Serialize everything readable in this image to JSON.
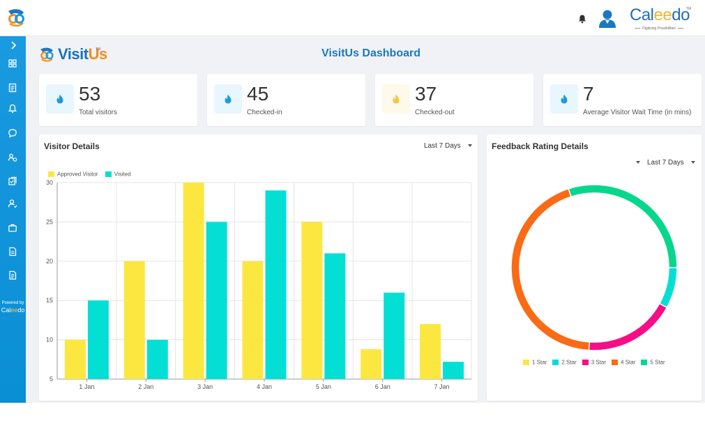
{
  "header": {
    "brand_prefix": "Cal",
    "brand_ee": "ee",
    "brand_suffix": "do",
    "brand_tm": "TM",
    "brand_tagline": "Digitizing Possibilities"
  },
  "sidebar": {
    "items": [
      "dashboard-icon",
      "register-icon",
      "notifications-icon",
      "chat-icon",
      "visitors-icon",
      "approvals-icon",
      "users-icon",
      "work-icon",
      "report-icon",
      "document-icon"
    ],
    "powered_label": "Powered by",
    "powered_prefix": "Cal",
    "powered_ee": "ee",
    "powered_suffix": "do"
  },
  "app_logo": {
    "visit": "Visit",
    "us": "Us",
    "tm": "TM"
  },
  "page_title": "VisitUs Dashboard",
  "stats": [
    {
      "value": "53",
      "label": "Total visitors",
      "icon": "fire-icon",
      "icon_color": "#1a9ae0",
      "bg": "#e8f6fd"
    },
    {
      "value": "45",
      "label": "Checked-in",
      "icon": "fire-icon",
      "icon_color": "#1a9ae0",
      "bg": "#e8f6fd"
    },
    {
      "value": "37",
      "label": "Checked-out",
      "icon": "fire-icon",
      "icon_color": "#f5c542",
      "bg": "#fef9e8"
    },
    {
      "value": "7",
      "label": "Average Visitor Wait Time (in mins)",
      "icon": "fire-icon",
      "icon_color": "#1a9ae0",
      "bg": "#e8f6fd"
    }
  ],
  "visitor_panel": {
    "title": "Visitor Details",
    "range": "Last 7 Days"
  },
  "feedback_panel": {
    "title": "Feedback Rating Details",
    "range": "Last 7 Days"
  },
  "chart_data": [
    {
      "type": "bar",
      "categories": [
        "1 Jan",
        "2 Jan",
        "3 Jan",
        "4 Jan",
        "5 Jan",
        "6 Jan",
        "7 Jan"
      ],
      "series": [
        {
          "name": "Approved Visitor",
          "values": [
            10,
            20,
            30,
            20,
            25,
            8.8,
            12
          ],
          "color": "#fce740"
        },
        {
          "name": "Visited",
          "values": [
            15,
            10,
            25,
            29,
            21,
            16,
            7.2
          ],
          "color": "#04dfd6"
        }
      ],
      "yticks": [
        5,
        10,
        15,
        20,
        25,
        30
      ],
      "ylim": [
        5,
        30
      ],
      "grid": true,
      "legend": "top-left"
    },
    {
      "type": "pie",
      "donut": true,
      "labels": [
        "1 Star",
        "2 Star",
        "3 Star",
        "4 Star",
        "5 Star"
      ],
      "values": [
        0,
        8,
        18,
        44,
        30
      ],
      "colors": [
        "#fce740",
        "#04dfd6",
        "#f70d85",
        "#fb6a14",
        "#06d78d"
      ],
      "legend": "bottom"
    }
  ]
}
